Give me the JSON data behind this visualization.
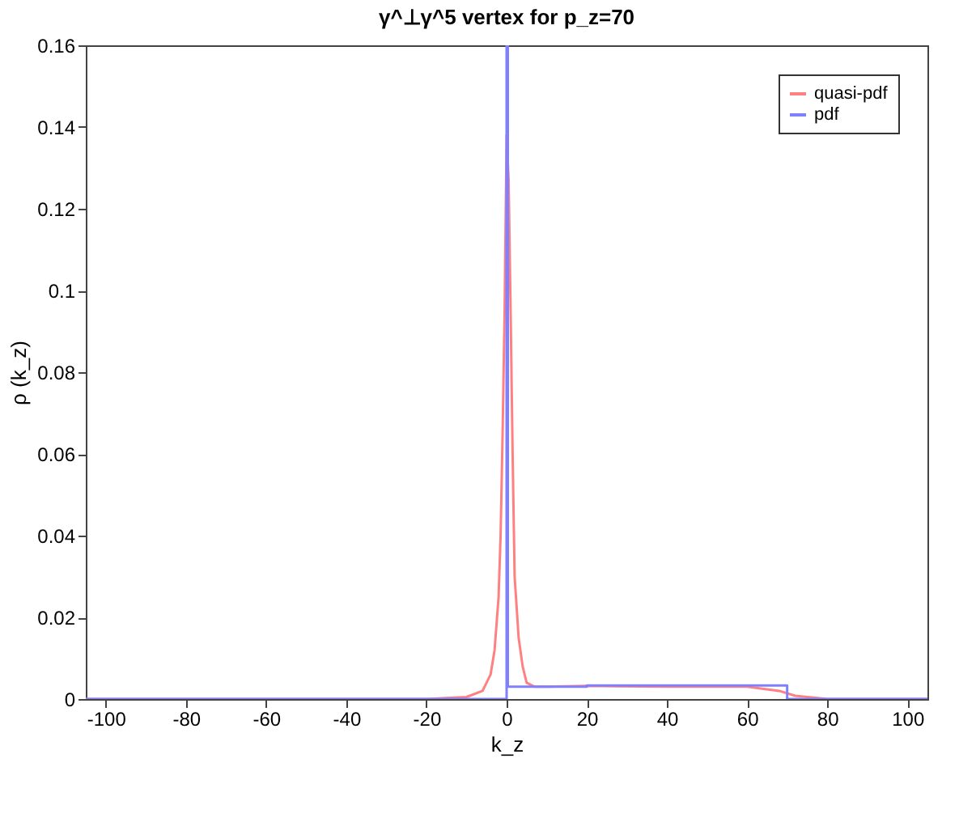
{
  "chart_data": {
    "type": "line",
    "title": "γ^⊥γ^5 vertex for p_z=70",
    "xlabel": "k_z",
    "ylabel": "ρ (k_z)",
    "xlim": [
      -105,
      105
    ],
    "xticks": [
      -100,
      -80,
      -60,
      -40,
      -20,
      0,
      20,
      40,
      60,
      80,
      100
    ],
    "ylim": [
      0,
      0.16
    ],
    "yticks": [
      0,
      0.02,
      0.04,
      0.06,
      0.08,
      0.1,
      0.12,
      0.14,
      0.16
    ],
    "grid": false,
    "legend": "top right",
    "marker": "none",
    "line_style": "solid",
    "series": [
      {
        "name": "quasi-pdf",
        "color": "#ff8080",
        "x": [
          -105,
          -20,
          -10,
          -6,
          -4,
          -3,
          -2,
          -1.5,
          -1,
          -0.5,
          0,
          0.5,
          1,
          1.5,
          2,
          3,
          4,
          5,
          7,
          10,
          20,
          40,
          60,
          68,
          72,
          80,
          105
        ],
        "values": [
          0,
          0,
          0.0005,
          0.002,
          0.006,
          0.012,
          0.025,
          0.04,
          0.065,
          0.095,
          0.138,
          0.127,
          0.095,
          0.06,
          0.03,
          0.015,
          0.008,
          0.004,
          0.003,
          0.003,
          0.0032,
          0.003,
          0.003,
          0.002,
          0.0008,
          0,
          0
        ]
      },
      {
        "name": "pdf",
        "color": "#8080ff",
        "x": [
          -105,
          0,
          0,
          0.3,
          0.3,
          20,
          20,
          70,
          70,
          105
        ],
        "values": [
          0,
          0,
          0.16,
          0.16,
          0.003,
          0.003,
          0.0033,
          0.0033,
          0,
          0
        ]
      }
    ]
  }
}
